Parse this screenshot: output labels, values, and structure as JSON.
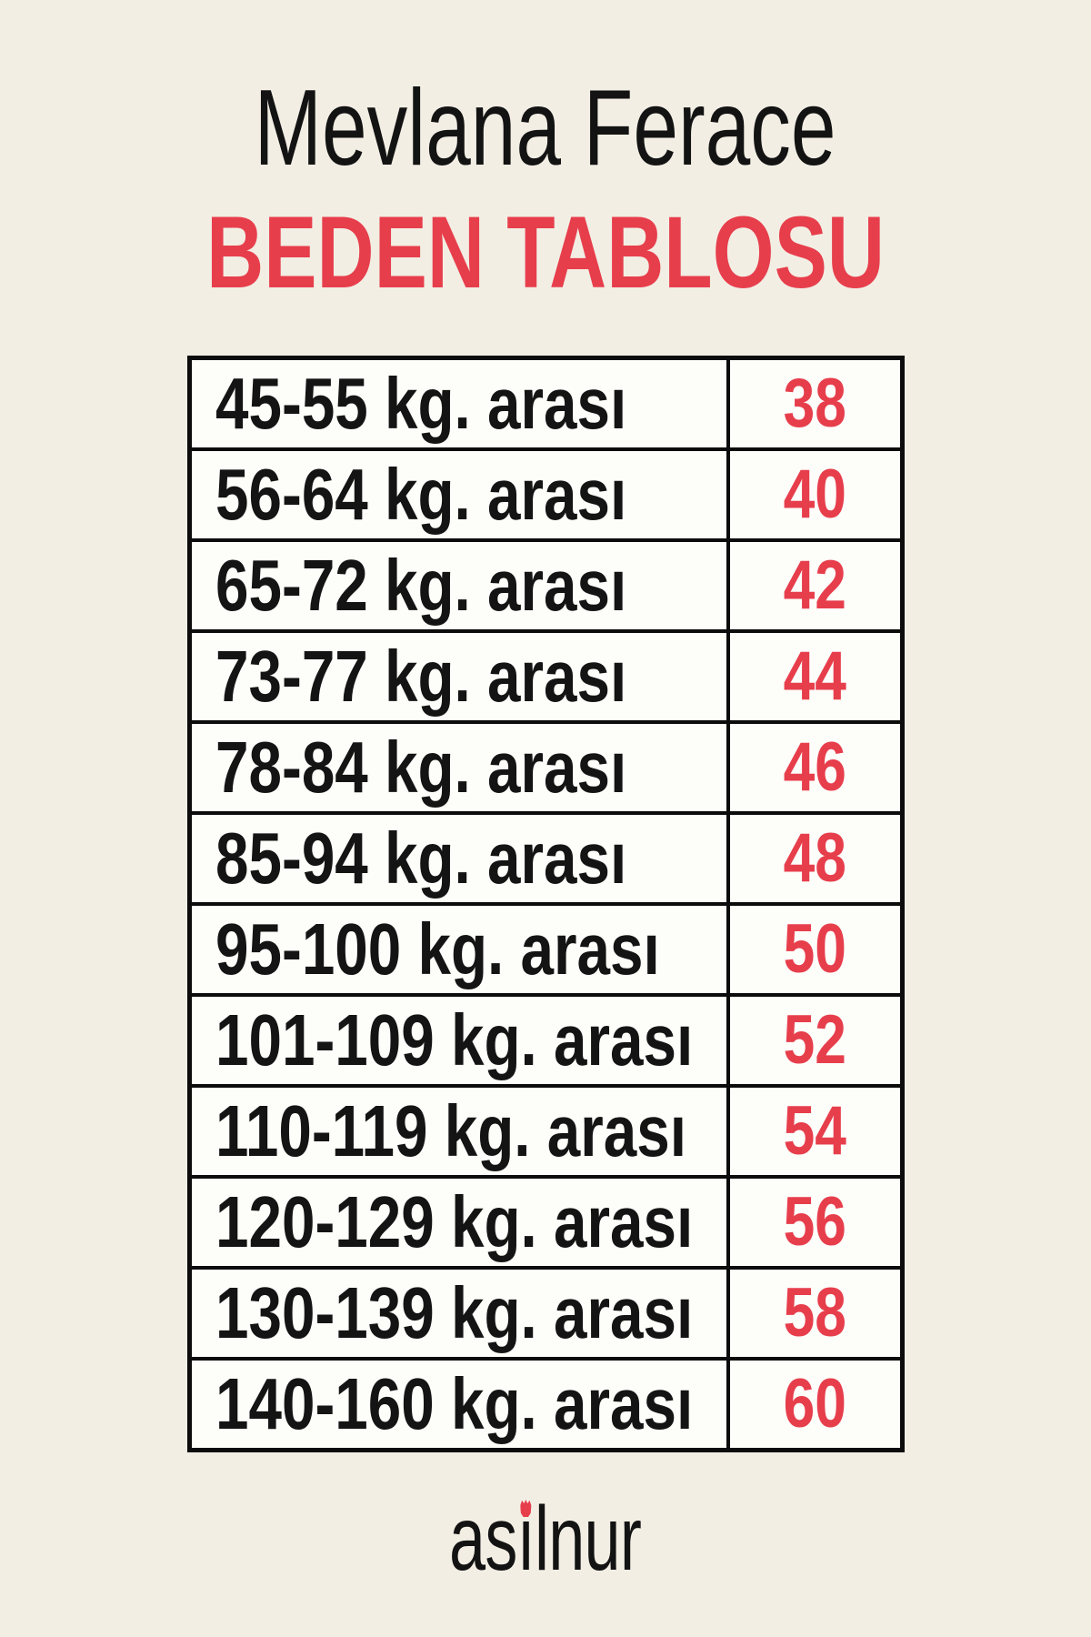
{
  "colors": {
    "background": "#f2eee4",
    "cell_background": "#fdfdfa",
    "border_black": "#0c0c0c",
    "accent_red": "#e73e4c",
    "text_black": "#131313"
  },
  "chart_data": {
    "type": "table",
    "title": "Mevlana Ferace",
    "subtitle": "BEDEN TABLOSU",
    "rows": [
      {
        "weight_range": "45-55 kg. arası",
        "size": "38"
      },
      {
        "weight_range": "56-64 kg. arası",
        "size": "40"
      },
      {
        "weight_range": "65-72 kg. arası",
        "size": "42"
      },
      {
        "weight_range": "73-77 kg. arası",
        "size": "44"
      },
      {
        "weight_range": "78-84 kg. arası",
        "size": "46"
      },
      {
        "weight_range": "85-94 kg. arası",
        "size": "48"
      },
      {
        "weight_range": "95-100 kg. arası",
        "size": "50"
      },
      {
        "weight_range": "101-109 kg. arası",
        "size": "52"
      },
      {
        "weight_range": "110-119 kg. arası",
        "size": "54"
      },
      {
        "weight_range": "120-129 kg. arası",
        "size": "56"
      },
      {
        "weight_range": "130-139 kg. arası",
        "size": "58"
      },
      {
        "weight_range": "140-160 kg. arası",
        "size": "60"
      }
    ]
  },
  "footer": {
    "brand_prefix": "as",
    "brand_i": "ı",
    "brand_suffix": "lnur"
  }
}
